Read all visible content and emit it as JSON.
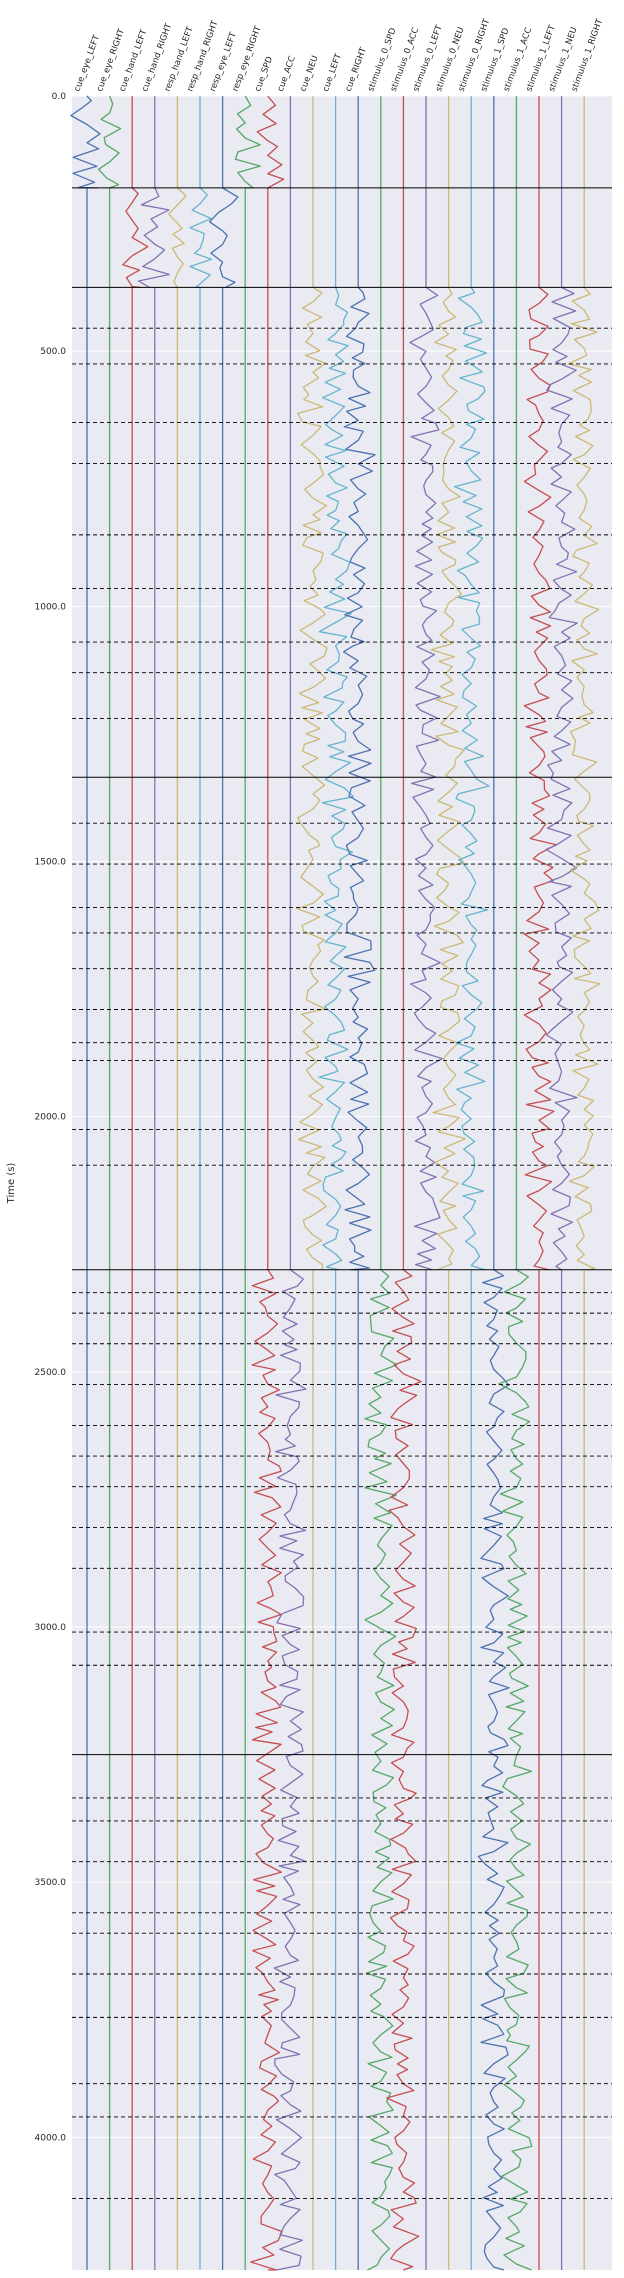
{
  "chart_data": {
    "type": "line",
    "ylabel": "Time (s)",
    "ylim": [
      0,
      4260
    ],
    "y_inverted": true,
    "y_ticks": [
      0,
      500,
      1000,
      1500,
      2000,
      2500,
      3000,
      3500,
      4000
    ],
    "y_tick_labels": [
      "0.0",
      "500.0",
      "1000.0",
      "1500.0",
      "2000.0",
      "2500.0",
      "3000.0",
      "3500.0",
      "4000.0"
    ],
    "grid": true,
    "regressor_columns": [
      {
        "name": "cue_eye_LEFT",
        "color": "#4c72b0"
      },
      {
        "name": "cue_eye_RIGHT",
        "color": "#55a868"
      },
      {
        "name": "cue_hand_LEFT",
        "color": "#c44e52"
      },
      {
        "name": "cue_hand_RIGHT",
        "color": "#8172b2"
      },
      {
        "name": "resp_hand_LEFT",
        "color": "#ccb974"
      },
      {
        "name": "resp_hand_RIGHT",
        "color": "#64b5cd"
      },
      {
        "name": "resp_eye_LEFT",
        "color": "#4c72b0"
      },
      {
        "name": "resp_eye_RIGHT",
        "color": "#55a868"
      },
      {
        "name": "cue_SPD",
        "color": "#c44e52"
      },
      {
        "name": "cue_ACC",
        "color": "#8172b2"
      },
      {
        "name": "cue_NEU",
        "color": "#ccb974"
      },
      {
        "name": "cue_LEFT",
        "color": "#64b5cd"
      },
      {
        "name": "cue_RIGHT",
        "color": "#4c72b0"
      },
      {
        "name": "stimulus_0_SPD",
        "color": "#55a868"
      },
      {
        "name": "stimulus_0_ACC",
        "color": "#c44e52"
      },
      {
        "name": "stimulus_0_LEFT",
        "color": "#8172b2"
      },
      {
        "name": "stimulus_0_NEU",
        "color": "#ccb974"
      },
      {
        "name": "stimulus_0_RIGHT",
        "color": "#64b5cd"
      },
      {
        "name": "stimulus_1_SPD",
        "color": "#4c72b0"
      },
      {
        "name": "stimulus_1_ACC",
        "color": "#55a868"
      },
      {
        "name": "stimulus_1_LEFT",
        "color": "#c44e52"
      },
      {
        "name": "stimulus_1_NEU",
        "color": "#8172b2"
      },
      {
        "name": "stimulus_1_RIGHT",
        "color": "#ccb974"
      }
    ],
    "run_boundaries_s": [
      0,
      180,
      375,
      1335,
      2300,
      3250
    ],
    "block_boundaries_s": [
      455,
      525,
      640,
      720,
      860,
      965,
      1070,
      1130,
      1220,
      1425,
      1505,
      1590,
      1640,
      1710,
      1790,
      1855,
      1890,
      2025,
      2095,
      2345,
      2385,
      2445,
      2525,
      2605,
      2665,
      2725,
      2805,
      2885,
      3010,
      3075,
      3335,
      3380,
      3460,
      3560,
      3600,
      3680,
      3765,
      3895,
      3960,
      4120
    ],
    "segments": [
      {
        "run": 1,
        "start": 0,
        "end": 180,
        "columns": [
          0,
          1,
          7,
          8
        ],
        "overlap": [
          [
            6,
            7
          ],
          [
            7,
            8
          ]
        ]
      },
      {
        "run": 2,
        "start": 180,
        "end": 375,
        "columns": [
          2,
          3,
          4,
          5,
          6
        ],
        "overlap": [
          [
            4,
            5
          ],
          [
            5,
            6
          ]
        ]
      },
      {
        "run": 3,
        "start": 375,
        "end": 2300,
        "columns": [
          10,
          11,
          12,
          15,
          16,
          17,
          20,
          21,
          22
        ],
        "overlap": [
          [
            10,
            11
          ],
          [
            11,
            12
          ]
        ]
      },
      {
        "run": 4,
        "start": 2300,
        "end": 4260,
        "columns": [
          8,
          9,
          13,
          14,
          18,
          19
        ],
        "overlap": [
          [
            8,
            9
          ]
        ]
      }
    ]
  }
}
